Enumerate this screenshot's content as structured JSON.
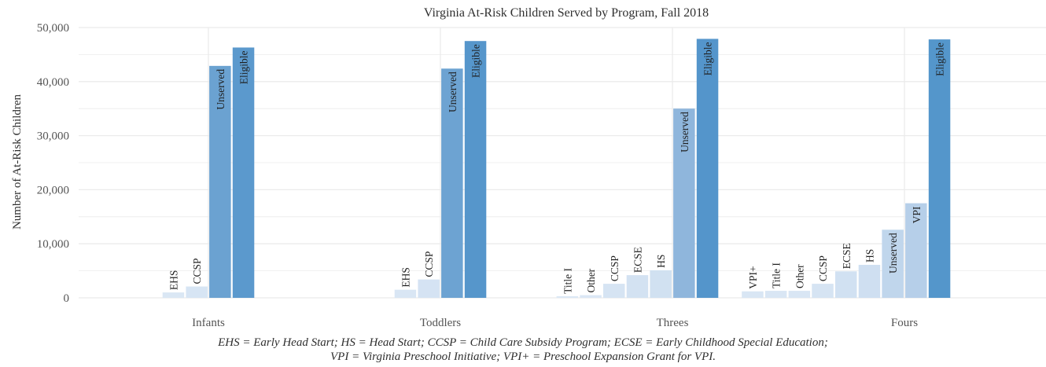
{
  "chart_data": {
    "type": "bar",
    "title": "Virginia At-Risk Children Served by Program, Fall 2018",
    "xlabel": "",
    "ylabel": "Number of At-Risk Children",
    "ylim": [
      0,
      50000
    ],
    "yticks": [
      0,
      10000,
      20000,
      30000,
      40000,
      50000
    ],
    "ytick_labels": [
      "0",
      "10,000",
      "20,000",
      "30,000",
      "40,000",
      "50,000"
    ],
    "grid": true,
    "legend": "none",
    "groups": [
      {
        "name": "Infants",
        "bars": [
          {
            "label": "EHS",
            "value": 1000
          },
          {
            "label": "CCSP",
            "value": 2100
          },
          {
            "label": "Unserved",
            "value": 42900
          },
          {
            "label": "Eligible",
            "value": 46300
          }
        ]
      },
      {
        "name": "Toddlers",
        "bars": [
          {
            "label": "EHS",
            "value": 1500
          },
          {
            "label": "CCSP",
            "value": 3400
          },
          {
            "label": "Unserved",
            "value": 42400
          },
          {
            "label": "Eligible",
            "value": 47500
          }
        ]
      },
      {
        "name": "Threes",
        "bars": [
          {
            "label": "Title I",
            "value": 300
          },
          {
            "label": "Other",
            "value": 500
          },
          {
            "label": "CCSP",
            "value": 2600
          },
          {
            "label": "ECSE",
            "value": 4200
          },
          {
            "label": "HS",
            "value": 5100
          },
          {
            "label": "Unserved",
            "value": 35000
          },
          {
            "label": "Eligible",
            "value": 47900
          }
        ]
      },
      {
        "name": "Fours",
        "bars": [
          {
            "label": "VPI+",
            "value": 1200
          },
          {
            "label": "Title I",
            "value": 1300
          },
          {
            "label": "Other",
            "value": 1300
          },
          {
            "label": "CCSP",
            "value": 2600
          },
          {
            "label": "ECSE",
            "value": 4900
          },
          {
            "label": "HS",
            "value": 6100
          },
          {
            "label": "Unserved",
            "value": 12600
          },
          {
            "label": "VPI",
            "value": 17500
          },
          {
            "label": "Eligible",
            "value": 47800
          }
        ]
      }
    ]
  },
  "footnote": {
    "line1": "EHS = Early Head Start; HS = Head Start; CCSP = Child Care Subsidy Program; ECSE = Early Childhood Special Education;",
    "line2": "VPI = Virginia Preschool Initiative; VPI+ = Preschool Expansion Grant for VPI."
  },
  "colors": {
    "low": "#dce8f5",
    "mid": "#8fb6dc",
    "high": "#4a90c8",
    "grid": "#ebebeb"
  }
}
